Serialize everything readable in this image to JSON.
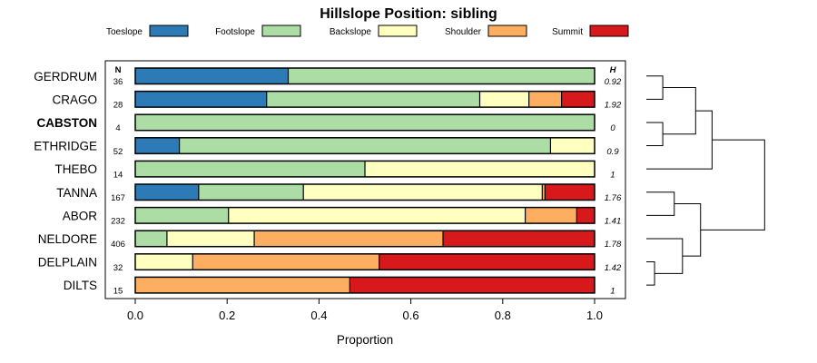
{
  "chart_data": {
    "type": "bar",
    "stacked": true,
    "orientation": "horizontal",
    "title": "Hillslope Position: sibling",
    "xlabel": "Proportion",
    "xlim": [
      0,
      1
    ],
    "x_ticks": [
      "0.0",
      "0.2",
      "0.4",
      "0.6",
      "0.8",
      "1.0"
    ],
    "n_header": "N",
    "h_header": "H",
    "legend": {
      "position": "top"
    },
    "series": [
      {
        "name": "Toeslope",
        "color": "#2c7bb6"
      },
      {
        "name": "Footslope",
        "color": "#abdda4"
      },
      {
        "name": "Backslope",
        "color": "#ffffbf"
      },
      {
        "name": "Shoulder",
        "color": "#fdae61"
      },
      {
        "name": "Summit",
        "color": "#d7191c"
      }
    ],
    "rows": [
      {
        "label": "GERDRUM",
        "n": "36",
        "h": "0.92",
        "bold": false,
        "values": [
          0.333,
          0.667,
          0,
          0,
          0
        ]
      },
      {
        "label": "CRAGO",
        "n": "28",
        "h": "1.92",
        "bold": false,
        "values": [
          0.286,
          0.464,
          0.107,
          0.071,
          0.072
        ]
      },
      {
        "label": "CABSTON",
        "n": "4",
        "h": "0",
        "bold": true,
        "values": [
          0,
          1.0,
          0,
          0,
          0
        ]
      },
      {
        "label": "ETHRIDGE",
        "n": "52",
        "h": "0.9",
        "bold": false,
        "values": [
          0.096,
          0.808,
          0.096,
          0,
          0
        ]
      },
      {
        "label": "THEBO",
        "n": "14",
        "h": "1",
        "bold": false,
        "values": [
          0,
          0.5,
          0.5,
          0,
          0
        ]
      },
      {
        "label": "TANNA",
        "n": "167",
        "h": "1.76",
        "bold": false,
        "values": [
          0.138,
          0.228,
          0.52,
          0.006,
          0.108
        ]
      },
      {
        "label": "ABOR",
        "n": "232",
        "h": "1.41",
        "bold": false,
        "values": [
          0,
          0.203,
          0.646,
          0.112,
          0.039
        ]
      },
      {
        "label": "NELDORE",
        "n": "406",
        "h": "1.78",
        "bold": false,
        "values": [
          0,
          0.069,
          0.19,
          0.411,
          0.33
        ]
      },
      {
        "label": "DELPLAIN",
        "n": "32",
        "h": "1.42",
        "bold": false,
        "values": [
          0,
          0,
          0.125,
          0.406,
          0.469
        ]
      },
      {
        "label": "DILTS",
        "n": "15",
        "h": "1",
        "bold": false,
        "values": [
          0,
          0,
          0,
          0.467,
          0.533
        ]
      }
    ],
    "dendrogram": {
      "merges": [
        {
          "a": 0,
          "b": 1,
          "height": 0.1
        },
        {
          "a": 2,
          "b": 3,
          "height": 0.1
        },
        {
          "a": "m0",
          "b": "m1",
          "height": 0.3
        },
        {
          "a": "m2",
          "b": 4,
          "height": 0.4
        },
        {
          "a": 5,
          "b": 6,
          "height": 0.17
        },
        {
          "a": 8,
          "b": 9,
          "height": 0.05
        },
        {
          "a": 7,
          "b": "m5",
          "height": 0.22
        },
        {
          "a": "m4",
          "b": "m6",
          "height": 0.33
        },
        {
          "a": "m3",
          "b": "m7",
          "height": 0.72
        }
      ]
    }
  }
}
